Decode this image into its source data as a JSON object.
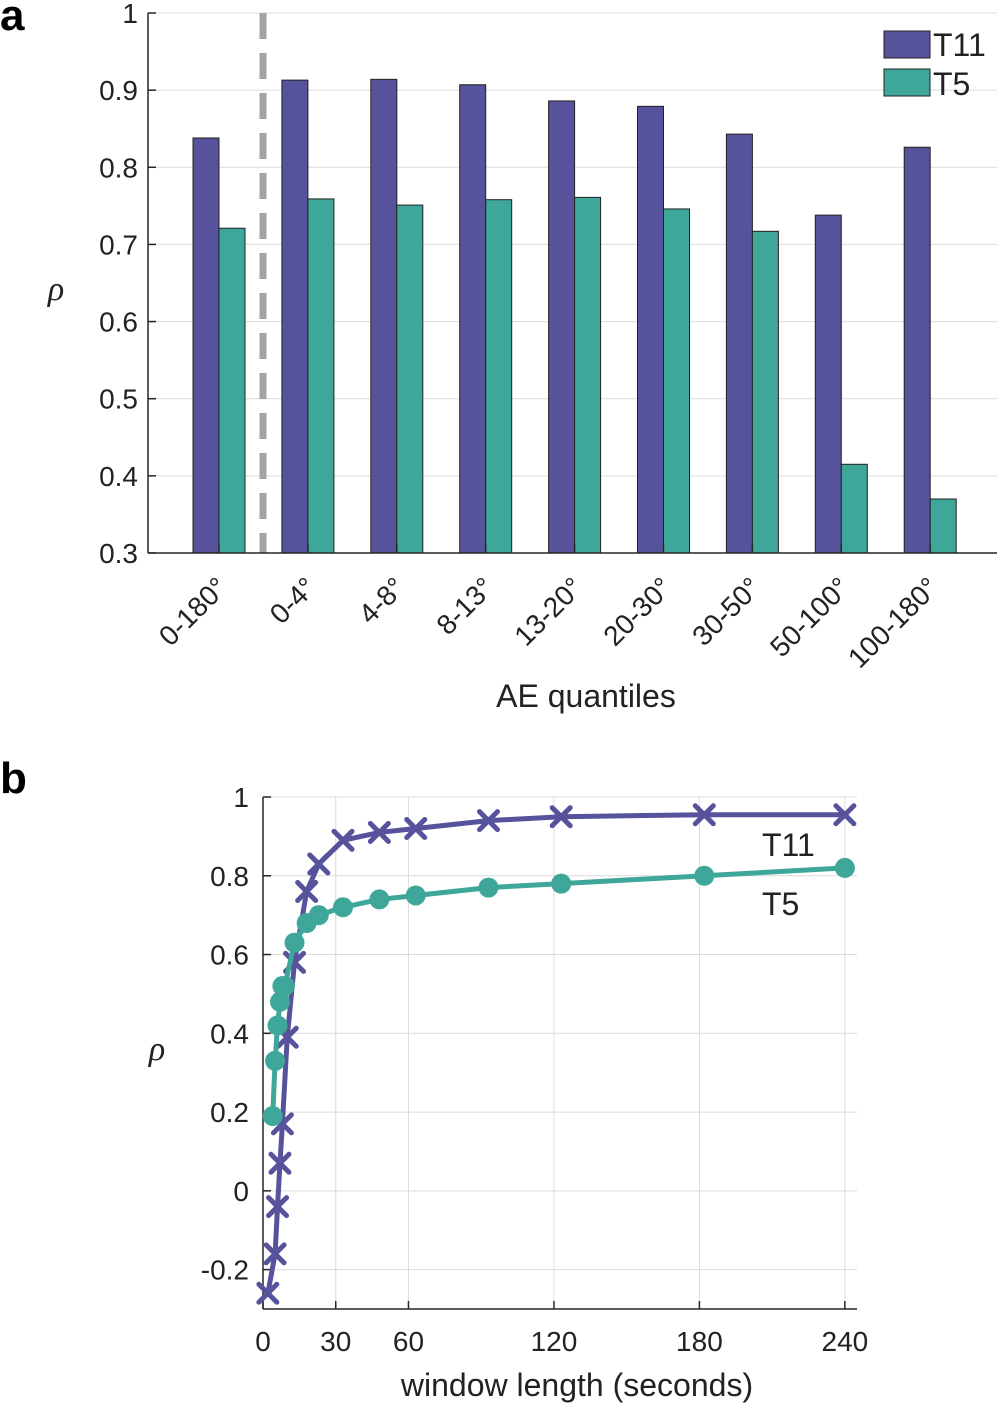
{
  "colors": {
    "t11": "#56529b",
    "t5": "#3fa79a",
    "dashed": "#a3a3a3"
  },
  "chart_data": [
    {
      "panel": "a",
      "type": "bar",
      "xlabel": "AE quantiles",
      "ylabel": "ρ",
      "ylim": [
        0.3,
        1
      ],
      "yticks": [
        "0.3",
        "0.4",
        "0.5",
        "0.6",
        "0.7",
        "0.8",
        "0.9",
        "1"
      ],
      "categories": [
        "0-180°",
        "0-4°",
        "4-8°",
        "8-13°",
        "13-20°",
        "20-30°",
        "30-50°",
        "50-100°",
        "100-180°"
      ],
      "series": [
        {
          "name": "T11",
          "values": [
            0.838,
            0.913,
            0.914,
            0.907,
            0.886,
            0.879,
            0.843,
            0.738,
            0.826
          ]
        },
        {
          "name": "T5",
          "values": [
            0.721,
            0.759,
            0.751,
            0.758,
            0.761,
            0.746,
            0.717,
            0.415,
            0.37
          ]
        }
      ],
      "grid": true,
      "legend": "top-right"
    },
    {
      "panel": "b",
      "type": "line",
      "xlabel": "window length (seconds)",
      "ylabel": "ρ",
      "xlim": [
        0,
        245
      ],
      "ylim": [
        -0.3,
        1
      ],
      "xticks": [
        "0",
        "30",
        "60",
        "120",
        "180",
        "240"
      ],
      "yticks": [
        "-0.2",
        "0",
        "0.2",
        "0.4",
        "0.6",
        "0.8",
        "1"
      ],
      "series": [
        {
          "name": "T11",
          "x": [
            2,
            5,
            6,
            7,
            8,
            10,
            13,
            18,
            23,
            33,
            48,
            63,
            93,
            123,
            182,
            240
          ],
          "y": [
            -0.26,
            -0.16,
            -0.04,
            0.07,
            0.17,
            0.39,
            0.58,
            0.76,
            0.83,
            0.89,
            0.91,
            0.92,
            0.94,
            0.95,
            0.955,
            0.955
          ]
        },
        {
          "name": "T5",
          "x": [
            4,
            5,
            6,
            7,
            8,
            9,
            13,
            18,
            23,
            33,
            48,
            63,
            93,
            123,
            182,
            240
          ],
          "y": [
            0.19,
            0.33,
            0.42,
            0.48,
            0.52,
            0.52,
            0.63,
            0.68,
            0.7,
            0.72,
            0.74,
            0.75,
            0.77,
            0.78,
            0.8,
            0.82
          ]
        }
      ],
      "grid": true,
      "legend": "inline-labels"
    }
  ]
}
